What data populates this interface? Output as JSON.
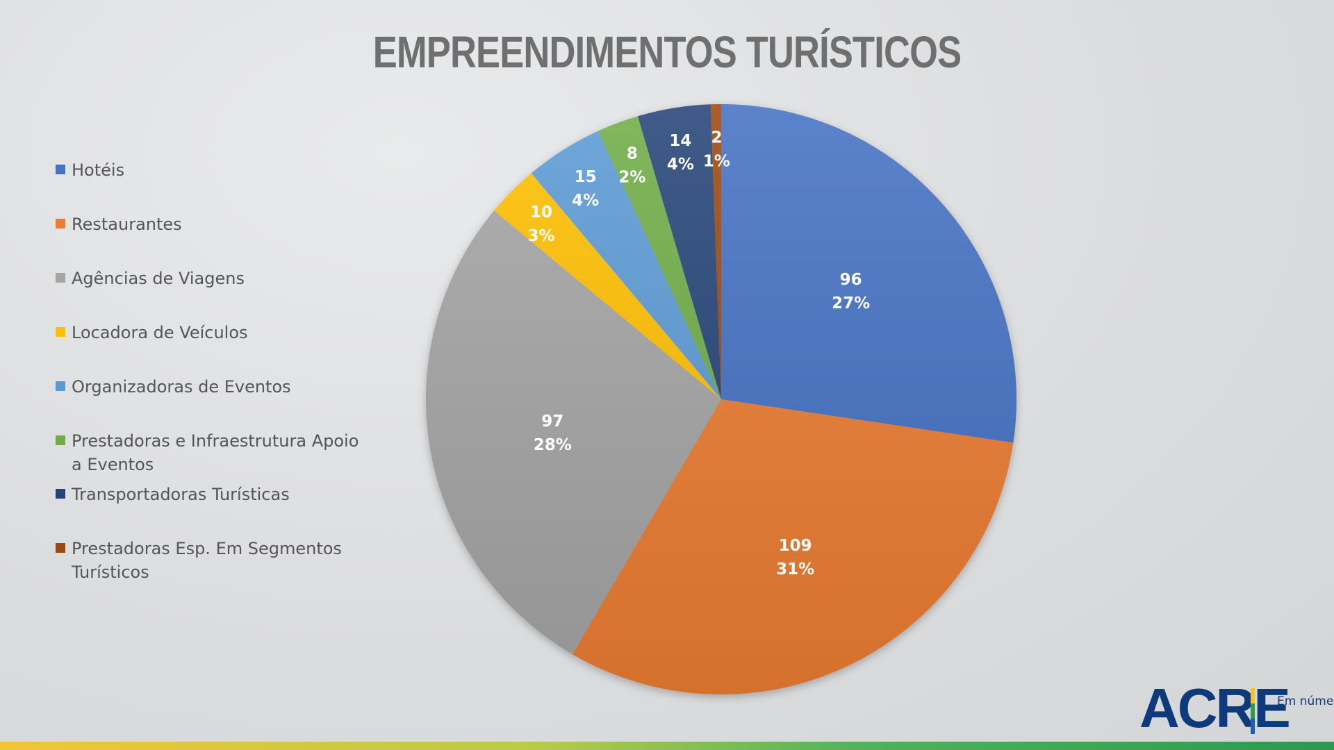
{
  "chart_data": {
    "type": "pie",
    "title": "EMPREENDIMENTOS TURÍSTICOS",
    "categories": [
      "Hotéis",
      "Restaurantes",
      "Agências de Viagens",
      "Locadora de Veículos",
      "Organizadoras de Eventos",
      "Prestadoras e Infraestrutura Apoio a Eventos",
      "Transportadoras Turísticas",
      "Prestadoras Esp. Em Segmentos Turísticos"
    ],
    "values": [
      96,
      109,
      97,
      10,
      15,
      8,
      14,
      2
    ],
    "percent_labels": [
      "27%",
      "31%",
      "28%",
      "3%",
      "4%",
      "2%",
      "4%",
      "1%"
    ],
    "colors": [
      "#4472c4",
      "#ed7d31",
      "#a5a5a5",
      "#ffc000",
      "#5b9bd5",
      "#70ad47",
      "#264478",
      "#9e480e"
    ],
    "legend_position": "left"
  },
  "logo": {
    "main": "ACRE",
    "sub": "Em números"
  }
}
